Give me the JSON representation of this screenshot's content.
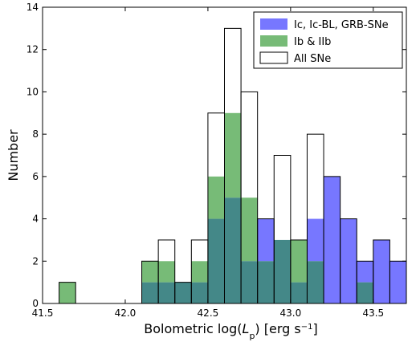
{
  "chart_data": {
    "type": "bar",
    "subtype": "overlaid-histogram",
    "title": "",
    "xlabel_prefix": "Bolometric ",
    "xlabel_math": "log(",
    "xlabel_L": "L",
    "xlabel_sub": "p",
    "xlabel_mid": ") [erg s",
    "xlabel_exp": "−1",
    "xlabel_suffix": "]",
    "ylabel": "Number",
    "xlim": [
      41.5,
      43.7
    ],
    "ylim": [
      0,
      14
    ],
    "bin_width": 0.1,
    "bin_start": 41.6,
    "x_ticks": [
      41.5,
      42.0,
      42.5,
      43.0,
      43.5
    ],
    "x_tick_labels": [
      "41.5",
      "42.0",
      "42.5",
      "43.0",
      "43.5"
    ],
    "y_ticks": [
      0,
      2,
      4,
      6,
      8,
      10,
      12,
      14
    ],
    "y_tick_labels": [
      "0",
      "2",
      "4",
      "6",
      "8",
      "10",
      "12",
      "14"
    ],
    "legend_position": "top-right",
    "series": [
      {
        "name": "Ic, Ic-BL, GRB-SNe",
        "color": "#7777ff",
        "style": "filled",
        "values": [
          0,
          0,
          0,
          0,
          0,
          1,
          1,
          1,
          1,
          4,
          5,
          2,
          4,
          3,
          1,
          4,
          6,
          4,
          2,
          3,
          2,
          0,
          0,
          0,
          0,
          0,
          0,
          0,
          0,
          0,
          0,
          0,
          0,
          0,
          0,
          0,
          0,
          0,
          0,
          0
        ]
      },
      {
        "name": "Ib & IIb",
        "color": "#77bb77",
        "style": "filled",
        "values": [
          1,
          0,
          0,
          0,
          0,
          2,
          2,
          1,
          2,
          6,
          9,
          5,
          2,
          3,
          3,
          2,
          0,
          0,
          1,
          0,
          0,
          0,
          0,
          0,
          0,
          0,
          0,
          0,
          0,
          0,
          0,
          0,
          0,
          0,
          0,
          0,
          0,
          0,
          0,
          0
        ]
      },
      {
        "name": "All SNe",
        "color": "#000000",
        "style": "outline",
        "values": [
          1,
          0,
          0,
          0,
          0,
          2,
          3,
          1,
          3,
          9,
          13,
          10,
          4,
          7,
          3,
          8,
          6,
          4,
          2,
          3,
          2,
          0,
          0,
          0,
          0,
          0,
          0,
          0,
          0,
          0,
          0,
          0,
          0,
          0,
          0,
          0,
          0,
          0,
          0,
          0
        ]
      }
    ],
    "overlap_color": "#448888"
  }
}
